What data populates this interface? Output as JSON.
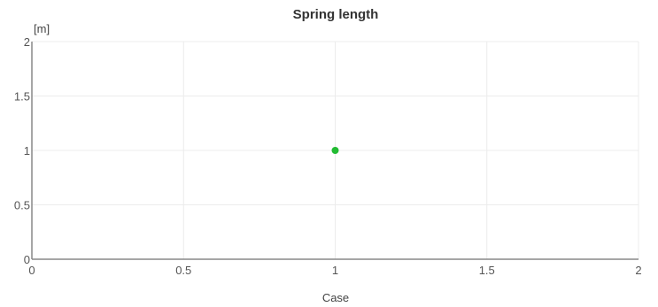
{
  "chart_data": {
    "type": "scatter",
    "title": "Spring length",
    "xlabel": "Case",
    "ylabel": "[m]",
    "xlim": [
      0,
      2
    ],
    "ylim": [
      0,
      2
    ],
    "x_ticks": [
      0,
      0.5,
      1,
      1.5,
      2
    ],
    "x_tick_labels": [
      "0",
      "0.5",
      "1",
      "1.5",
      "2"
    ],
    "y_ticks": [
      0,
      0.5,
      1,
      1.5,
      2
    ],
    "y_tick_labels": [
      "0",
      "0.5",
      "1",
      "1.5",
      "2"
    ],
    "grid": true,
    "legend": "none",
    "series": [
      {
        "color": "#22bb33",
        "points": [
          {
            "x": 1,
            "y": 1
          }
        ]
      }
    ],
    "colors": {
      "grid": "#ececec",
      "axis": "#888888",
      "marker": "#22bb33"
    }
  }
}
